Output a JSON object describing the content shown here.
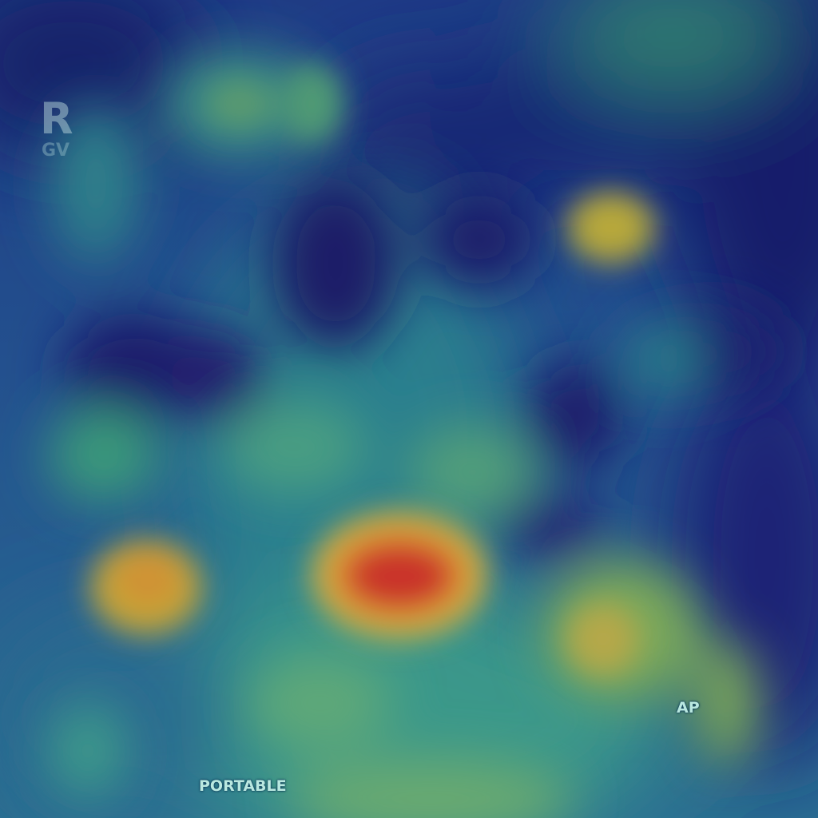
{
  "image": {
    "kind": "chest radiograph with attention heatmap overlay",
    "colormap": [
      "#1b1464",
      "#23479a",
      "#2a8a8c",
      "#6fb56a",
      "#c6b43a",
      "#d8352a"
    ]
  },
  "markers": {
    "side": "R",
    "side_sub": "GV",
    "projection": "AP",
    "technique": "PORTABLE"
  }
}
